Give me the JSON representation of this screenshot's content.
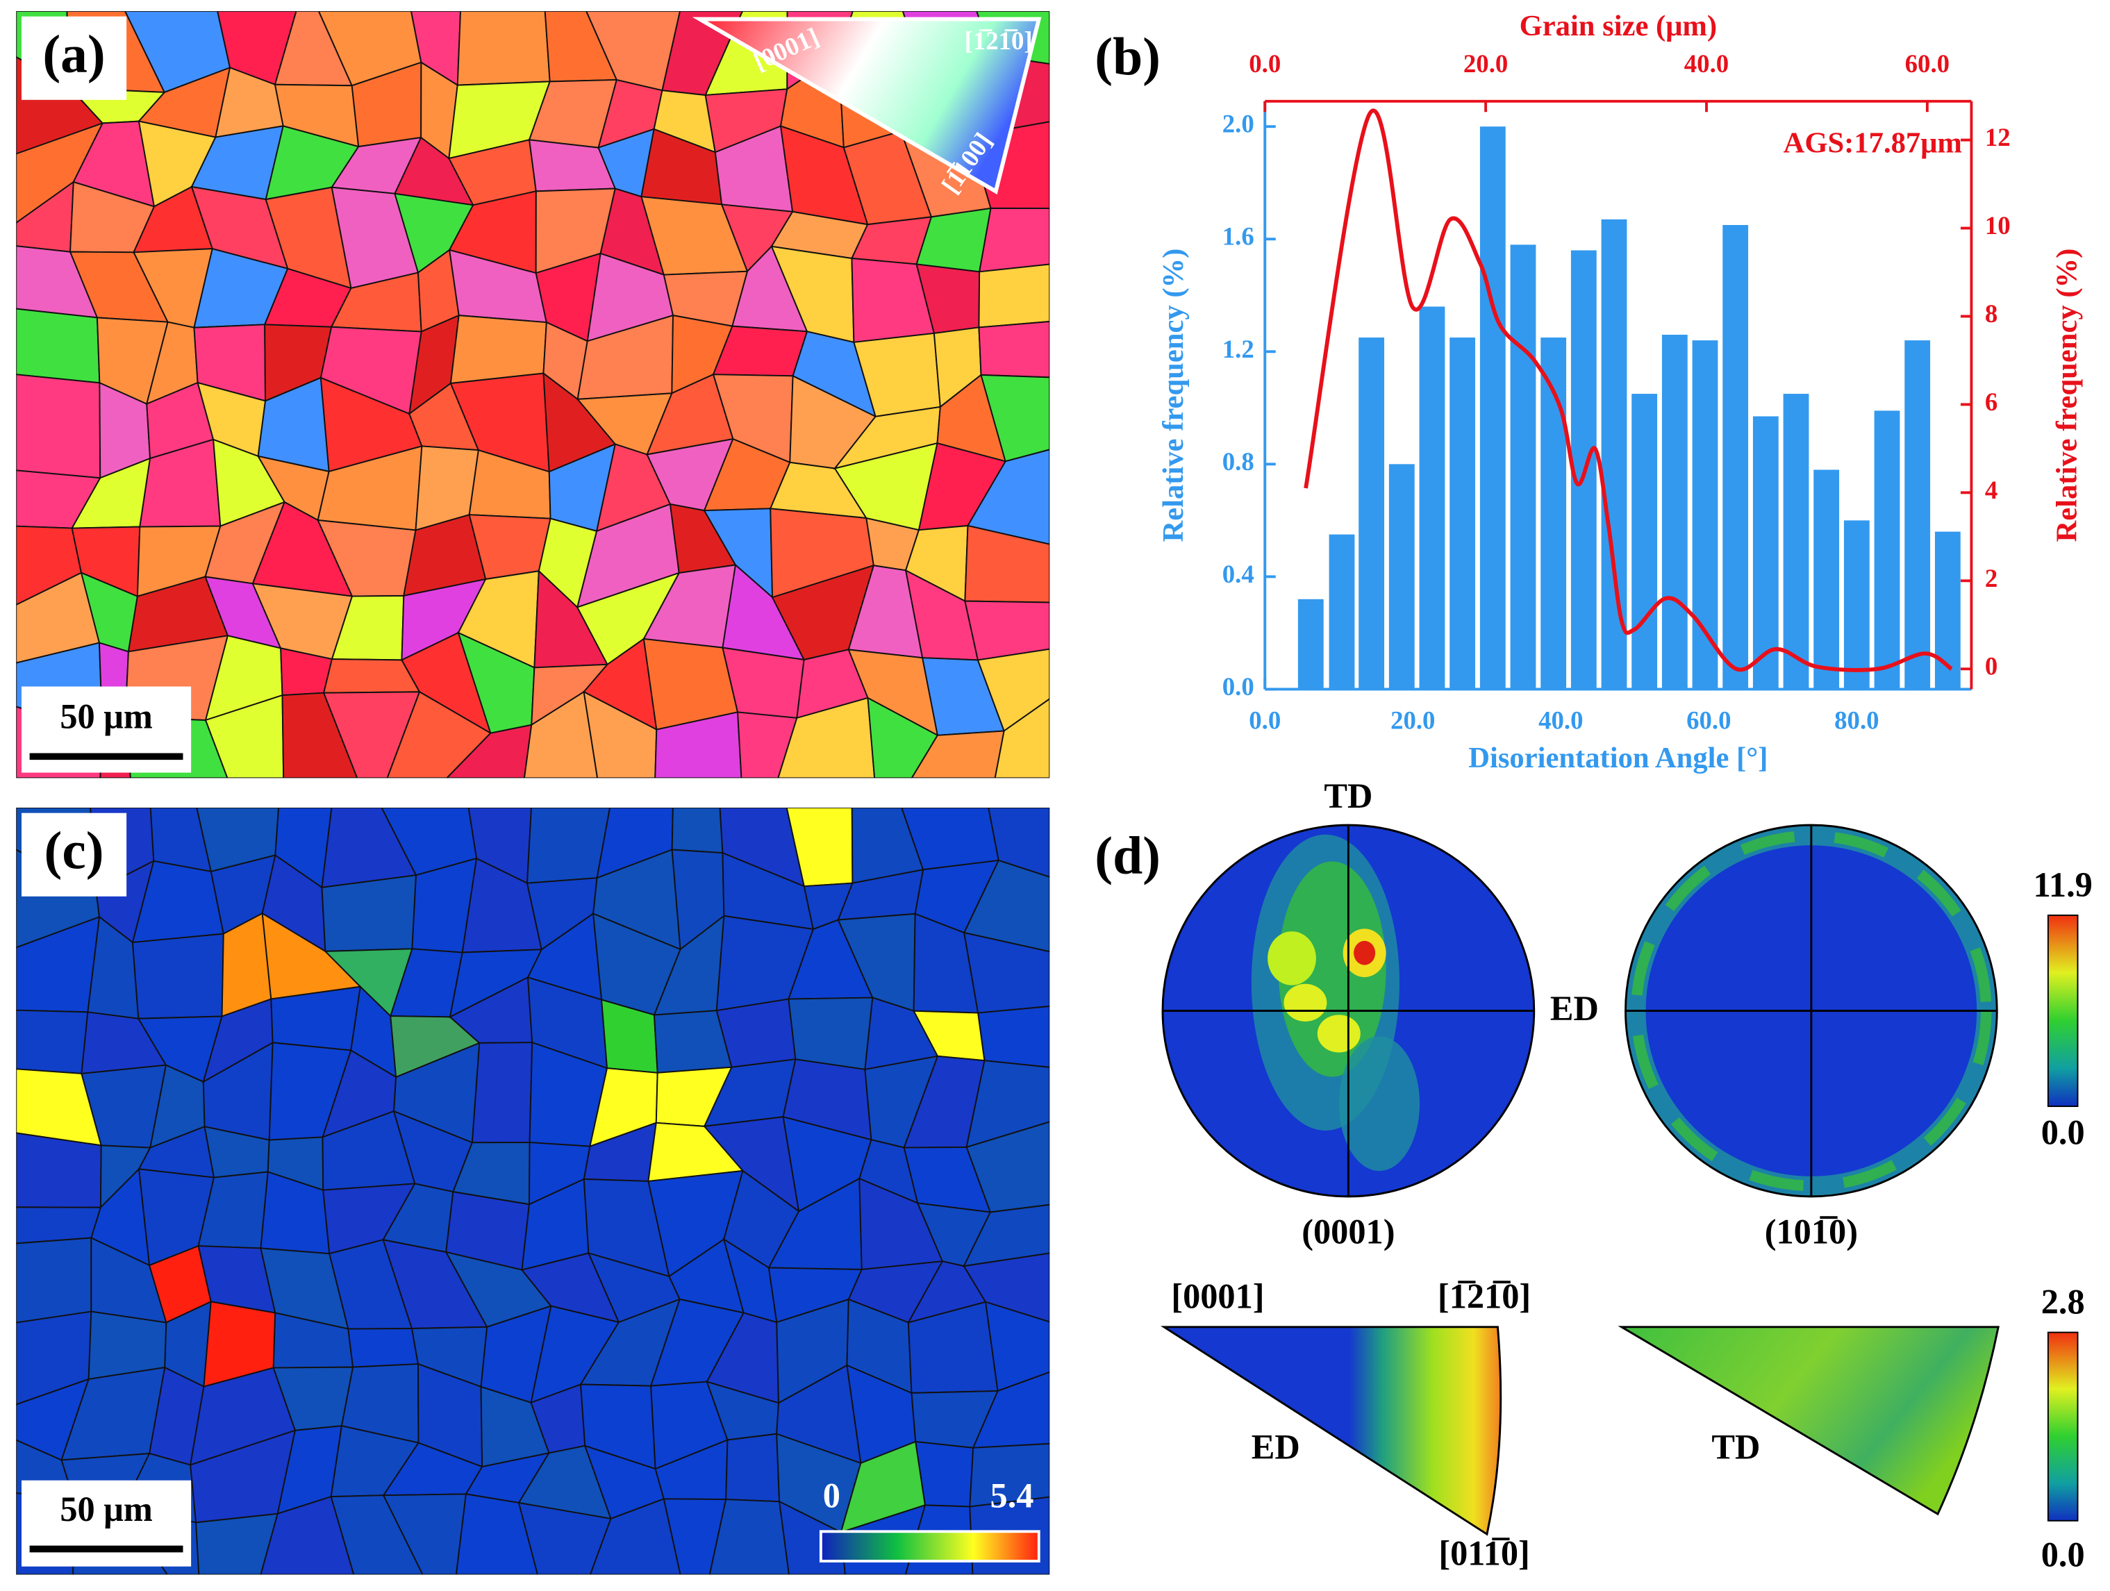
{
  "panels": {
    "a": {
      "label": "(a)",
      "scale_bar": "50 μm",
      "key": [
        "[0001]",
        "[1̅21̅0]",
        "[1̅100]"
      ]
    },
    "b": {
      "label": "(b)"
    },
    "c": {
      "label": "(c)",
      "scale_bar": "50 μm",
      "colorbar": [
        "0",
        "5.4"
      ]
    },
    "d": {
      "label": "(d)",
      "pole_figures": [
        "(0001)",
        "(101̅0)"
      ],
      "pole_axes": [
        "TD",
        "ED"
      ],
      "pole_colorbar": [
        "11.9",
        "0.0"
      ],
      "ipf_labels": [
        "[0001]",
        "[1̅21̅0]",
        "[011̅0]"
      ],
      "ipf_axes": [
        "ED",
        "TD"
      ],
      "ipf_colorbar": [
        "2.8",
        "0.0"
      ]
    }
  },
  "chart_data": {
    "type": "bar",
    "x_label": "Disorientation Angle [°]",
    "x2_label": "Grain size (μm)",
    "y_label": "Relative frequency (%)",
    "y2_label": "Relative frequency (%)",
    "annotation": "AGS:17.87μm",
    "color": "#3399ee",
    "x": [
      6.2,
      10.4,
      14.4,
      18.5,
      22.6,
      26.7,
      30.8,
      34.9,
      39.0,
      43.1,
      47.2,
      51.3,
      55.4,
      59.5,
      63.6,
      67.7,
      71.8,
      75.9,
      80.0,
      84.1,
      88.2,
      92.3
    ],
    "values": [
      0.32,
      0.55,
      1.25,
      0.8,
      1.36,
      1.25,
      2.0,
      1.58,
      1.25,
      1.56,
      1.67,
      1.05,
      1.26,
      1.24,
      1.65,
      0.97,
      1.05,
      0.78,
      0.6,
      0.99,
      1.24,
      0.56
    ],
    "xlim": [
      0,
      95.5
    ],
    "xticks": [
      {
        "value": 0,
        "label": "0.0"
      },
      {
        "value": 20,
        "label": "20.0"
      },
      {
        "value": 40,
        "label": "40.0"
      },
      {
        "value": 60,
        "label": "60.0"
      },
      {
        "value": 80,
        "label": "80.0"
      }
    ],
    "ylim": [
      0,
      2.09
    ],
    "yticks": [
      {
        "value": 0,
        "label": "0.0"
      },
      {
        "value": 0.4,
        "label": "0.4"
      },
      {
        "value": 0.8,
        "label": "0.8"
      },
      {
        "value": 1.2,
        "label": "1.2"
      },
      {
        "value": 1.6,
        "label": "1.6"
      },
      {
        "value": 2.0,
        "label": "2.0"
      }
    ],
    "x2lim": [
      0,
      64.0
    ],
    "x2ticks": [
      {
        "value": 0,
        "label": "0.0"
      },
      {
        "value": 20,
        "label": "20.0"
      },
      {
        "value": 40,
        "label": "40.0"
      },
      {
        "value": 60,
        "label": "60.0"
      }
    ],
    "y2lim": [
      -0.46,
      12.88
    ],
    "y2ticks": [
      0,
      2,
      4,
      6,
      8,
      10,
      12
    ],
    "series": [
      {
        "type": "line",
        "axis": "y2",
        "color": "#e8101a",
        "x": [
          3.7,
          9.5,
          13.4,
          16.8,
          19.5,
          21.3,
          24.4,
          26.8,
          28.3,
          29.9,
          31.1,
          32.3,
          33.5,
          36.3,
          38.8,
          42.7,
          46.3,
          50.0,
          55.5,
          59.8,
          62.2
        ],
        "values": [
          4.1,
          12.6,
          8.2,
          10.2,
          9.2,
          7.8,
          7.0,
          5.9,
          4.2,
          5.0,
          3.3,
          1.1,
          0.9,
          1.6,
          1.2,
          0,
          0.45,
          0.05,
          0,
          0.35,
          0
        ]
      }
    ]
  }
}
